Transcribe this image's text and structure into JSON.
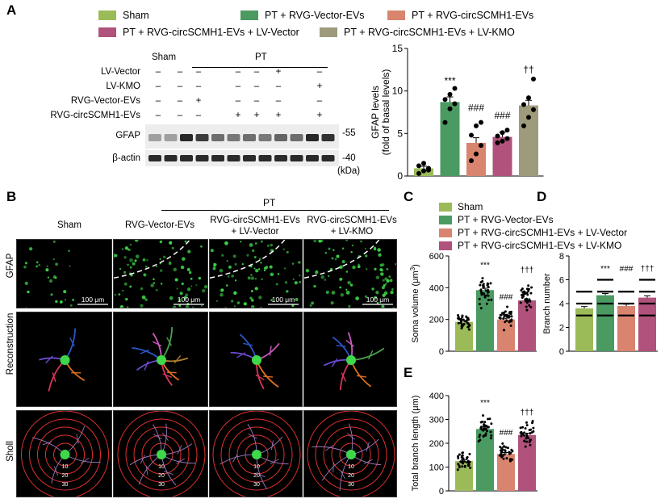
{
  "panels": {
    "a": "A",
    "b": "B",
    "c": "C",
    "d": "D",
    "e": "E"
  },
  "colors": {
    "sham": "#9bbb59",
    "vec": "#4a9a62",
    "circ_vec": "#d9846f",
    "circ_lvvec": "#b0527c",
    "circ_kmo": "#9e9a7c"
  },
  "legend_top": [
    {
      "label": "Sham",
      "color": "#9bbb59"
    },
    {
      "label": "PT + RVG-Vector-EVs",
      "color": "#4a9a62"
    },
    {
      "label": "PT + RVG-circSCMH1-EVs",
      "color": "#d9846f"
    },
    {
      "label": "PT + RVG-circSCMH1-EVs + LV-Vector",
      "color": "#b0527c"
    },
    {
      "label": "PT + RVG-circSCMH1-EVs + LV-KMO",
      "color": "#9e9a7c"
    }
  ],
  "western": {
    "header_sham": "Sham",
    "header_pt": "PT",
    "rows": [
      {
        "label": "LV-Vector",
        "cells": [
          "–",
          "–",
          "–",
          "–",
          "–",
          "+",
          "–"
        ]
      },
      {
        "label": "LV-KMO",
        "cells": [
          "–",
          "–",
          "–",
          "–",
          "–",
          "–",
          "+"
        ]
      },
      {
        "label": "RVG-Vector-EVs",
        "cells": [
          "–",
          "–",
          "+",
          "–",
          "–",
          "–",
          "–"
        ]
      },
      {
        "label": "RVG-circSCMH1-EVs",
        "cells": [
          "–",
          "–",
          "–",
          "+",
          "+",
          "+",
          "+"
        ]
      }
    ],
    "gfap_label": "GFAP",
    "actin_label": "β-actin",
    "marker_55": "-55",
    "marker_40": "-40",
    "kda": "(kDa)"
  },
  "microscopy": {
    "pt_header": "PT",
    "columns": [
      "Sham",
      "RVG-Vector-EVs",
      "RVG-circSCMH1-EVs\n+ LV-Vector",
      "RVG-circSCMH1-EVs\n+ LV-KMO"
    ],
    "rows": [
      "GFAP",
      "Reconstruction",
      "Sholl"
    ],
    "scale_bar": "100 μm",
    "sholl_radii": [
      "10",
      "20",
      "30"
    ]
  },
  "legend_c": [
    {
      "label": "Sham",
      "color": "#9bbb59"
    },
    {
      "label": "PT + RVG-Vector-EVs",
      "color": "#4a9a62"
    },
    {
      "label": "PT + RVG-circSCMH1-EVs + LV-Vector",
      "color": "#d9846f"
    },
    {
      "label": "PT + RVG-circSCMH1-EVs + LV-KMO",
      "color": "#b0527c"
    }
  ],
  "chart_data": [
    {
      "id": "A",
      "type": "bar",
      "ylabel": "GFAP levels\n(fold of basal levels)",
      "ylim": [
        0,
        15
      ],
      "yticks": [
        0,
        5,
        10,
        15
      ],
      "categories": [
        "Sham",
        "PT + RVG-Vector-EVs",
        "PT + RVG-circSCMH1-EVs",
        "PT + RVG-circSCMH1-EVs + LV-Vector",
        "PT + RVG-circSCMH1-EVs + LV-KMO"
      ],
      "values": [
        0.9,
        8.7,
        3.9,
        4.6,
        8.3
      ],
      "errors": [
        0.25,
        0.6,
        0.6,
        0.55,
        0.6
      ],
      "points": [
        [
          0.3,
          0.6,
          0.9,
          1.2,
          1.5,
          0.7
        ],
        [
          6.3,
          7.9,
          8.5,
          9.0,
          9.6,
          10.3
        ],
        [
          1.8,
          2.6,
          3.6,
          4.8,
          5.9,
          6.3
        ],
        [
          3.9,
          4.1,
          4.4,
          4.7,
          5.1,
          5.4
        ],
        [
          5.9,
          6.9,
          7.8,
          8.4,
          9.2,
          11.4
        ]
      ],
      "annotations": [
        "",
        "***",
        "###",
        "###",
        "††"
      ]
    },
    {
      "id": "C",
      "type": "bar",
      "ylabel": "Soma volume (μm³)",
      "ylim": [
        0,
        600
      ],
      "yticks": [
        0,
        200,
        400,
        600
      ],
      "categories": [
        "Sham",
        "PT + RVG-Vector-EVs",
        "PT + RVG-circSCMH1-EVs + LV-Vector",
        "PT + RVG-circSCMH1-EVs + LV-KMO"
      ],
      "values": [
        185,
        385,
        200,
        320
      ],
      "errors": [
        8,
        12,
        8,
        10
      ],
      "spread": [
        [
          110,
          260
        ],
        [
          260,
          500
        ],
        [
          130,
          300
        ],
        [
          200,
          470
        ]
      ],
      "annotations": [
        "",
        "***",
        "###",
        "†††"
      ]
    },
    {
      "id": "D",
      "type": "bar",
      "ylabel": "Branch number",
      "ylim": [
        0,
        8
      ],
      "yticks": [
        0,
        2,
        4,
        6,
        8
      ],
      "categories": [
        "Sham",
        "PT + RVG-Vector-EVs",
        "PT + RVG-circSCMH1-EVs + LV-Vector",
        "PT + RVG-circSCMH1-EVs + LV-KMO"
      ],
      "values": [
        3.6,
        4.7,
        3.8,
        4.5
      ],
      "errors": [
        0.15,
        0.15,
        0.15,
        0.15
      ],
      "levels": [
        [
          3,
          4,
          5
        ],
        [
          3,
          4,
          5,
          6
        ],
        [
          3,
          4,
          5
        ],
        [
          3,
          4,
          5,
          6
        ]
      ],
      "annotations": [
        "",
        "***",
        "###",
        "†††"
      ]
    },
    {
      "id": "E",
      "type": "bar",
      "ylabel": "Total branch length (μm)",
      "ylim": [
        0,
        400
      ],
      "yticks": [
        0,
        100,
        200,
        300,
        400
      ],
      "categories": [
        "Sham",
        "PT + RVG-Vector-EVs",
        "PT + RVG-circSCMH1-EVs + LV-Vector",
        "PT + RVG-circSCMH1-EVs + LV-KMO"
      ],
      "values": [
        125,
        260,
        155,
        235
      ],
      "errors": [
        6,
        8,
        6,
        7
      ],
      "spread": [
        [
          60,
          190
        ],
        [
          180,
          340
        ],
        [
          100,
          215
        ],
        [
          160,
          300
        ]
      ],
      "annotations": [
        "",
        "***",
        "###",
        "†††"
      ]
    }
  ]
}
